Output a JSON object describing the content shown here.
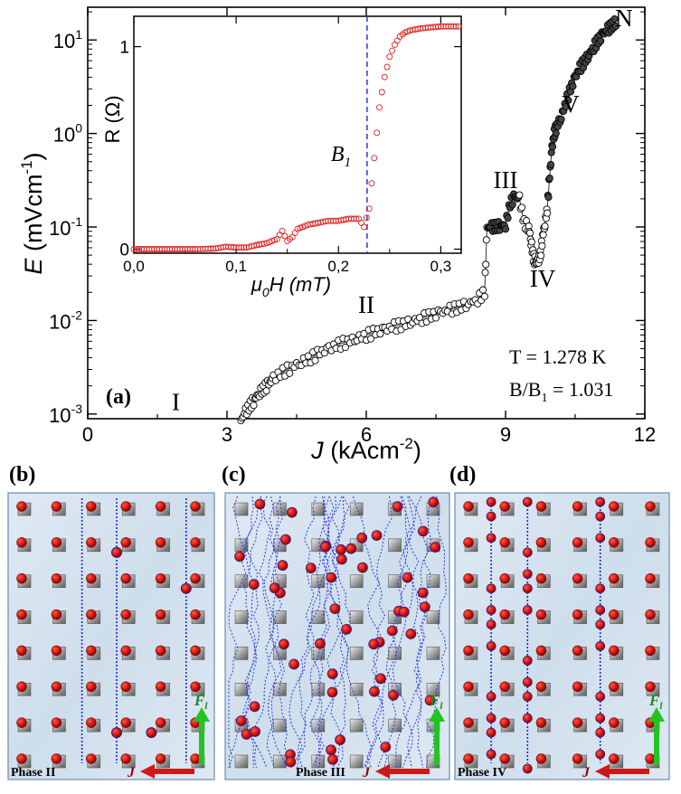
{
  "chart_data": [
    {
      "id": "main",
      "type": "scatter",
      "panel_label": "(a)",
      "xlabel_sym": "J",
      "xlabel_unit": "(kAcm",
      "xlabel_exp": "-2",
      "xlabel_close": ")",
      "ylabel_sym": "E",
      "ylabel_unit": "(mVcm",
      "ylabel_exp": "-1",
      "ylabel_close": ")",
      "xlim": [
        0,
        12
      ],
      "ylim_log10": [
        -3.05,
        1.35
      ],
      "x_ticks": [
        0,
        3,
        6,
        9,
        12
      ],
      "x_tick_labels": [
        "0",
        "3",
        "6",
        "9",
        "12"
      ],
      "y_ticks_log10": [
        -3,
        -2,
        -1,
        0,
        1
      ],
      "y_tick_base": "10",
      "y_tick_exps": [
        "-3",
        "-2",
        "-1",
        "0",
        "1"
      ],
      "phase_labels": [
        {
          "text": "I",
          "x": 1.9,
          "y": 0.0011
        },
        {
          "text": "II",
          "x": 6.0,
          "y": 0.012
        },
        {
          "text": "III",
          "x": 9.0,
          "y": 0.26
        },
        {
          "text": "IV",
          "x": 9.8,
          "y": 0.023
        },
        {
          "text": "V",
          "x": 10.4,
          "y": 1.7
        },
        {
          "text": "N",
          "x": 11.55,
          "y": 14
        }
      ],
      "annotation_T": "T = 1.278 K",
      "annotation_B_prefix": "B/B",
      "annotation_B_sub": "1",
      "annotation_B_value": " = 1.031",
      "series": [
        {
          "name": "E(J)",
          "marker": "open circle",
          "x": [
            3.3,
            3.4,
            3.5,
            3.6,
            3.7,
            3.8,
            3.9,
            4.0,
            4.2,
            4.4,
            4.6,
            4.8,
            5.0,
            5.2,
            5.4,
            5.6,
            5.8,
            6.0,
            6.2,
            6.4,
            6.6,
            6.8,
            7.0,
            7.2,
            7.4,
            7.6,
            7.8,
            8.0,
            8.2,
            8.4,
            8.55,
            8.6,
            8.7,
            8.8,
            8.9,
            9.0,
            9.1,
            9.2,
            9.3,
            9.4,
            9.5,
            9.55,
            9.6,
            9.65,
            9.7,
            9.75,
            9.8,
            9.85,
            9.9,
            9.95,
            10.0,
            10.05,
            10.1,
            10.2,
            10.3,
            10.4,
            10.5,
            10.6,
            10.7,
            10.8,
            10.9,
            11.0,
            11.1,
            11.2,
            11.3,
            11.4
          ],
          "y": [
            0.00085,
            0.00105,
            0.00125,
            0.00145,
            0.0017,
            0.0019,
            0.0021,
            0.0024,
            0.0028,
            0.0032,
            0.0036,
            0.004,
            0.0045,
            0.005,
            0.0055,
            0.006,
            0.0065,
            0.007,
            0.0075,
            0.008,
            0.0086,
            0.0092,
            0.0099,
            0.0106,
            0.0113,
            0.0121,
            0.013,
            0.014,
            0.0152,
            0.017,
            0.02,
            0.098,
            0.1,
            0.102,
            0.104,
            0.106,
            0.18,
            0.21,
            0.2,
            0.11,
            0.1,
            0.07,
            0.048,
            0.042,
            0.043,
            0.05,
            0.08,
            0.11,
            0.16,
            0.35,
            0.7,
            1.0,
            1.2,
            1.5,
            2.2,
            3.0,
            4.0,
            5.0,
            6.0,
            7.0,
            8.5,
            10.0,
            11.5,
            13.0,
            14.5,
            16.0
          ]
        }
      ]
    },
    {
      "id": "inset",
      "type": "scatter",
      "xlabel_sym": "μ",
      "xlabel_sub": "0",
      "xlabel_rest": "H (mT)",
      "ylabel": "R (Ω)",
      "xlim": [
        0,
        0.32
      ],
      "ylim": [
        -0.02,
        1.15
      ],
      "x_ticks": [
        0,
        0.1,
        0.2,
        0.3
      ],
      "x_tick_labels": [
        "0,0",
        "0,1",
        "0,2",
        "0,3"
      ],
      "y_ticks": [
        0,
        1
      ],
      "y_tick_labels": [
        "0",
        "1"
      ],
      "marker_line_label": "B",
      "marker_line_sub": "1",
      "marker_line_x": 0.228,
      "series": [
        {
          "name": "R(H)",
          "marker": "open circle",
          "color": "#e02020",
          "x": [
            0.0,
            0.02,
            0.04,
            0.06,
            0.08,
            0.09,
            0.1,
            0.11,
            0.12,
            0.13,
            0.14,
            0.145,
            0.15,
            0.155,
            0.16,
            0.17,
            0.18,
            0.19,
            0.2,
            0.21,
            0.22,
            0.225,
            0.23,
            0.235,
            0.24,
            0.245,
            0.25,
            0.255,
            0.26,
            0.265,
            0.27,
            0.28,
            0.29,
            0.3,
            0.31,
            0.32
          ],
          "y": [
            0.0,
            0.0,
            0.0,
            0.0,
            0.003,
            0.012,
            0.008,
            0.008,
            0.02,
            0.03,
            0.05,
            0.09,
            0.04,
            0.06,
            0.1,
            0.12,
            0.13,
            0.14,
            0.14,
            0.15,
            0.15,
            0.11,
            0.2,
            0.45,
            0.7,
            0.85,
            0.95,
            1.01,
            1.05,
            1.07,
            1.08,
            1.09,
            1.095,
            1.1,
            1.1,
            1.1
          ]
        }
      ]
    }
  ],
  "lattice_panels": [
    {
      "label": "(b)",
      "phase": "Phase II",
      "force": "F",
      "force_sub": "l",
      "current": "J"
    },
    {
      "label": "(c)",
      "phase": "Phase III",
      "force": "F",
      "force_sub": "l",
      "current": "J"
    },
    {
      "label": "(d)",
      "phase": "Phase IV",
      "force": "F",
      "force_sub": "l",
      "current": "J"
    }
  ]
}
